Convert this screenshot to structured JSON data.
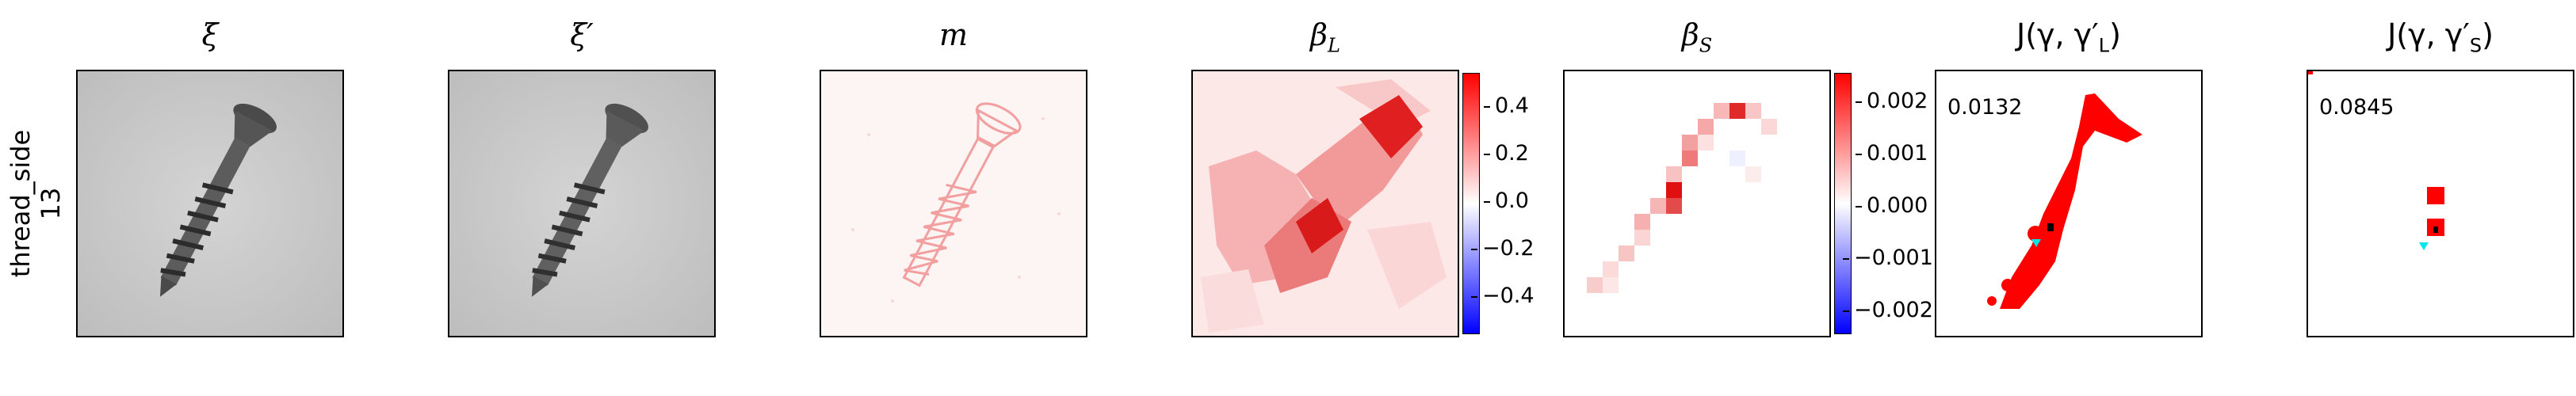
{
  "row": {
    "label_line1": "thread_side",
    "label_line2": "13"
  },
  "panels": {
    "xi": {
      "title": "ξ"
    },
    "xi_prime": {
      "title": "ξ′"
    },
    "m": {
      "title": "m"
    },
    "beta_L": {
      "title_base": "β",
      "title_sub": "L",
      "colorbar_ticks": [
        "0.4",
        "0.2",
        "0.0",
        "−0.2",
        "−0.4"
      ],
      "colorbar_range": [
        -0.55,
        0.55
      ]
    },
    "beta_S": {
      "title_base": "β",
      "title_sub": "S",
      "colorbar_ticks": [
        "0.002",
        "0.001",
        "0.000",
        "−0.001",
        "−0.002"
      ],
      "colorbar_range": [
        -0.0025,
        0.0025
      ]
    },
    "J_L": {
      "title": "J(γ, γ′",
      "title_sub": "L",
      "title_close": ")",
      "score": "0.0132"
    },
    "J_S": {
      "title": "J(γ, γ′",
      "title_sub": "S",
      "title_close": ")",
      "score": "0.0845"
    }
  },
  "colors": {
    "positive": "#ff0000",
    "negative": "#0000ff",
    "highlight": "#00e5e5",
    "background_gray": "#c8c8c8"
  }
}
